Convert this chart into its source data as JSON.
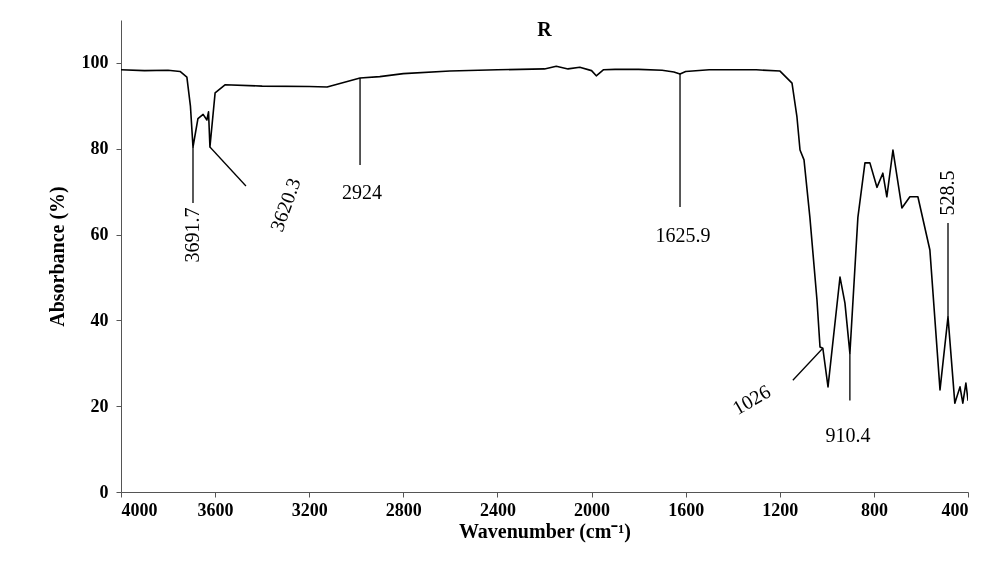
{
  "chart_data": {
    "type": "line",
    "title": "R",
    "xlabel": "Wavenumber (cm⁻¹)",
    "ylabel": "Absorbance  (%)",
    "x": [
      4000,
      3900,
      3800,
      3749,
      3720,
      3705,
      3694,
      3673,
      3651,
      3635,
      3628,
      3622,
      3600,
      3558,
      3400,
      3200,
      3124,
      2984,
      2900,
      2800,
      2602,
      2400,
      2200,
      2150,
      2100,
      2050,
      2000,
      1980,
      1950,
      1900,
      1800,
      1700,
      1650,
      1624,
      1600,
      1500,
      1400,
      1300,
      1199,
      1148,
      1127,
      1114,
      1097,
      1072,
      1042,
      1029,
      1017,
      995,
      944,
      923,
      902,
      868,
      838,
      817,
      787,
      762,
      745,
      719,
      681,
      647,
      613,
      562,
      519,
      485,
      456,
      434,
      422,
      409,
      400
    ],
    "series": [
      {
        "color": "#000000",
        "values": [
          98.4,
          98.2,
          98.3,
          98,
          96.7,
          90,
          80.4,
          87,
          88,
          86.7,
          88.6,
          80.4,
          93,
          94.9,
          94.6,
          94.5,
          94.4,
          96.5,
          96.8,
          97.5,
          98.1,
          98.4,
          98.6,
          99.2,
          98.6,
          99,
          98.2,
          97,
          98.4,
          98.5,
          98.5,
          98.3,
          97.9,
          97.4,
          98,
          98.4,
          98.4,
          98.4,
          98.1,
          95.3,
          87.4,
          79.7,
          77.4,
          64,
          44.8,
          33.8,
          33.5,
          24.5,
          50.1,
          44,
          32.3,
          64,
          76.7,
          76.7,
          71,
          74.3,
          68.8,
          79.7,
          66.2,
          68.8,
          68.8,
          56.4,
          23.8,
          40.8,
          20.7,
          24.5,
          20.7,
          25.4,
          21.4
        ]
      }
    ],
    "xlim": [
      4000,
      400
    ],
    "xticks": [
      4000,
      3600,
      3200,
      2800,
      2400,
      2000,
      1600,
      1200,
      800,
      400
    ],
    "ylim": [
      0,
      110
    ],
    "yticks": [
      0,
      20,
      40,
      60,
      80,
      100
    ],
    "grid": false,
    "annotations": [
      {
        "text": "3691.7",
        "x": 3694,
        "y": 80.4
      },
      {
        "text": "3620.3",
        "x": 3622,
        "y": 80.4
      },
      {
        "text": "2924",
        "x": 2984,
        "y": 96.5
      },
      {
        "text": "1625.9",
        "x": 1624,
        "y": 97.4
      },
      {
        "text": "1026",
        "x": 1017,
        "y": 33.5
      },
      {
        "text": "910.4",
        "x": 902,
        "y": 32.3
      },
      {
        "text": "528.5",
        "x": 485,
        "y": 40.8
      }
    ]
  }
}
